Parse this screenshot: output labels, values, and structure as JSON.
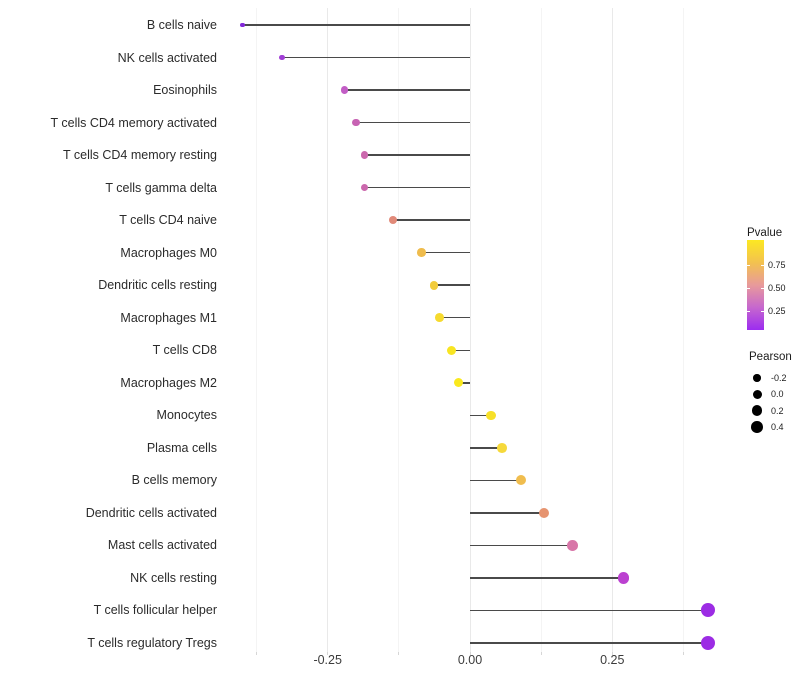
{
  "chart_data": {
    "type": "lollipop",
    "title": "",
    "xlabel": "",
    "ylabel": "",
    "x_axis": {
      "tick_labels": [
        "-0.25",
        "0.00",
        "0.25"
      ],
      "tick_values": [
        -0.25,
        0,
        0.25
      ],
      "major_gridlines": [
        -0.25,
        0,
        0.25
      ],
      "minor_gridlines": [
        -0.375,
        -0.125,
        0.125,
        0.375
      ],
      "tick_marks": [
        -0.375,
        -0.25,
        -0.125,
        0,
        0.125,
        0.25,
        0.375
      ],
      "range": [
        -0.44,
        0.46
      ]
    },
    "categories": [
      "B cells naive",
      "NK cells activated",
      "Eosinophils",
      "T cells CD4 memory activated",
      "T cells CD4 memory resting",
      "T cells gamma delta",
      "T cells CD4 naive",
      "Macrophages M0",
      "Dendritic cells resting",
      "Macrophages M1",
      "T cells CD8",
      "Macrophages M2",
      "Monocytes",
      "Plasma cells",
      "B cells memory",
      "Dendritic cells activated",
      "Mast cells activated",
      "NK cells resting",
      "T cells follicular helper",
      "T cells regulatory  Tregs"
    ],
    "series": [
      {
        "name": "Pearson",
        "values": [
          -0.4,
          -0.33,
          -0.22,
          -0.2,
          -0.185,
          -0.185,
          -0.135,
          -0.085,
          -0.063,
          -0.053,
          -0.032,
          -0.02,
          0.037,
          0.056,
          0.089,
          0.13,
          0.18,
          0.27,
          0.418,
          0.419
        ]
      }
    ],
    "points": [
      {
        "label": "B cells naive",
        "pearson": -0.4,
        "color": "#8227d8",
        "radius": 2.2
      },
      {
        "label": "NK cells activated",
        "pearson": -0.33,
        "color": "#a13fd6",
        "radius": 2.9
      },
      {
        "label": "Eosinophils",
        "pearson": -0.22,
        "color": "#c25dc5",
        "radius": 3.6
      },
      {
        "label": "T cells CD4 memory activated",
        "pearson": -0.2,
        "color": "#c763b3",
        "radius": 3.7
      },
      {
        "label": "T cells CD4 memory resting",
        "pearson": -0.185,
        "color": "#cb68ad",
        "radius": 3.8
      },
      {
        "label": "T cells gamma delta",
        "pearson": -0.185,
        "color": "#cb68ad",
        "radius": 3.8
      },
      {
        "label": "T cells CD4 naive",
        "pearson": -0.135,
        "color": "#e18a79",
        "radius": 4.0
      },
      {
        "label": "Macrophages M0",
        "pearson": -0.085,
        "color": "#efbc4d",
        "radius": 4.25
      },
      {
        "label": "Dendritic cells resting",
        "pearson": -0.063,
        "color": "#f2cc3c",
        "radius": 4.35
      },
      {
        "label": "Macrophages M1",
        "pearson": -0.053,
        "color": "#f6da2e",
        "radius": 4.4
      },
      {
        "label": "T cells CD8",
        "pearson": -0.032,
        "color": "#f8e522",
        "radius": 4.5
      },
      {
        "label": "Macrophages M2",
        "pearson": -0.02,
        "color": "#fae91e",
        "radius": 4.55
      },
      {
        "label": "Monocytes",
        "pearson": 0.037,
        "color": "#f7e029",
        "radius": 4.75
      },
      {
        "label": "Plasma cells",
        "pearson": 0.056,
        "color": "#f6d93b",
        "radius": 4.85
      },
      {
        "label": "B cells memory",
        "pearson": 0.089,
        "color": "#f0bd4e",
        "radius": 5.0
      },
      {
        "label": "Dendritic cells activated",
        "pearson": 0.13,
        "color": "#e69470",
        "radius": 5.15
      },
      {
        "label": "Mast cells activated",
        "pearson": 0.18,
        "color": "#d876a8",
        "radius": 5.35
      },
      {
        "label": "NK cells resting",
        "pearson": 0.27,
        "color": "#bb41d0",
        "radius": 5.8
      },
      {
        "label": "T cells follicular helper",
        "pearson": 0.418,
        "color": "#9c2ce4",
        "radius": 7.0
      },
      {
        "label": "T cells regulatory  Tregs",
        "pearson": 0.419,
        "color": "#9c2ce4",
        "radius": 7.0
      }
    ],
    "legend_pvalue": {
      "title": "Pvalue",
      "tick_labels": [
        "0.75",
        "0.50",
        "0.25"
      ],
      "tick_offsets_pct": [
        27.5,
        53,
        79
      ],
      "gradient_bottom_to_top": [
        "#9c2cf0",
        "#c667ce",
        "#e89a9b",
        "#f3c24f",
        "#fce822"
      ]
    },
    "legend_pearson": {
      "title": "Pearson",
      "items": [
        {
          "label": "-0.2",
          "radius": 3.7
        },
        {
          "label": "0.0",
          "radius": 4.5
        },
        {
          "label": "0.2",
          "radius": 5.3
        },
        {
          "label": "0.4",
          "radius": 5.9
        }
      ],
      "legend_position": "right"
    }
  }
}
